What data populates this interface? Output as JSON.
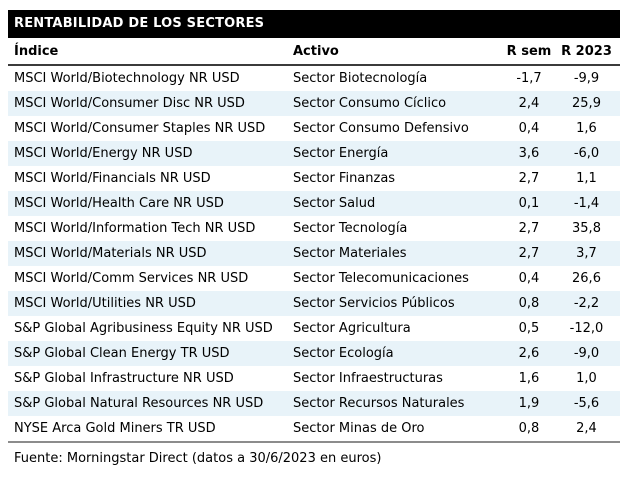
{
  "chart_data": {
    "type": "table",
    "title": "RENTABILIDAD DE LOS SECTORES",
    "columns": [
      "Índice",
      "Activo",
      "R sem",
      "R 2023"
    ],
    "rows": [
      [
        "MSCI World/Biotechnology NR USD",
        "Sector Biotecnología",
        "-1,7",
        "-9,9"
      ],
      [
        "MSCI World/Consumer Disc NR USD",
        "Sector Consumo Cíclico",
        "2,4",
        "25,9"
      ],
      [
        "MSCI World/Consumer Staples NR USD",
        "Sector Consumo Defensivo",
        "0,4",
        "1,6"
      ],
      [
        "MSCI World/Energy NR USD",
        "Sector Energía",
        "3,6",
        "-6,0"
      ],
      [
        "MSCI World/Financials NR USD",
        "Sector Finanzas",
        "2,7",
        "1,1"
      ],
      [
        "MSCI World/Health Care NR USD",
        "Sector Salud",
        "0,1",
        "-1,4"
      ],
      [
        "MSCI World/Information Tech NR USD",
        "Sector Tecnología",
        "2,7",
        "35,8"
      ],
      [
        "MSCI World/Materials NR USD",
        "Sector Materiales",
        "2,7",
        "3,7"
      ],
      [
        "MSCI World/Comm Services NR USD",
        "Sector Telecomunicaciones",
        "0,4",
        "26,6"
      ],
      [
        "MSCI World/Utilities NR USD",
        "Sector Servicios Públicos",
        "0,8",
        "-2,2"
      ],
      [
        "S&P Global Agribusiness Equity NR USD",
        "Sector Agricultura",
        "0,5",
        "-12,0"
      ],
      [
        "S&P Global Clean Energy TR USD",
        "Sector Ecología",
        "2,6",
        "-9,0"
      ],
      [
        "S&P Global Infrastructure NR USD",
        "Sector Infraestructuras",
        "1,6",
        "1,0"
      ],
      [
        "S&P Global Natural Resources NR USD",
        "Sector Recursos Naturales",
        "1,9",
        "-5,6"
      ],
      [
        "NYSE Arca Gold Miners TR USD",
        "Sector Minas de Oro",
        "0,8",
        "2,4"
      ]
    ],
    "footer": "Fuente: Morningstar Direct (datos a 30/6/2023 en euros)",
    "layout": "striped-table"
  },
  "colors": {
    "title_bar_bg": "#000000",
    "title_bar_text": "#ffffff",
    "alt_row_bg": "#e8f3f9",
    "header_rule": "#3b3b3b",
    "bottom_rule": "#8c8c8c",
    "body_text": "#000000"
  }
}
